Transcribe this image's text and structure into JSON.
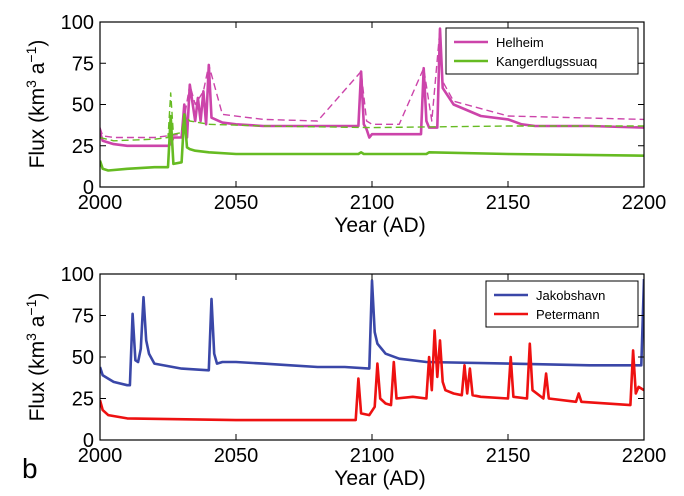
{
  "chart_data": [
    {
      "type": "line",
      "panel_label": "",
      "xlabel": "Year (AD)",
      "ylabel_parts": [
        "Flux (km",
        "3",
        " a",
        "−1",
        ")"
      ],
      "xlim": [
        2000,
        2200
      ],
      "ylim": [
        0,
        100
      ],
      "xticks": [
        2000,
        2050,
        2100,
        2150,
        2200
      ],
      "yticks": [
        0,
        25,
        50,
        75,
        100
      ],
      "legend_position": "top-right",
      "series": [
        {
          "name": "Helheim",
          "color": "#cc44aa",
          "style": "solid",
          "x": [
            2000,
            2001,
            2005,
            2010,
            2020,
            2025,
            2026,
            2027,
            2030,
            2031,
            2032,
            2033,
            2035,
            2036,
            2037,
            2038,
            2039,
            2040,
            2041,
            2045,
            2050,
            2060,
            2070,
            2080,
            2090,
            2095,
            2096,
            2097,
            2098,
            2099,
            2100,
            2105,
            2110,
            2118,
            2119,
            2120,
            2121,
            2122,
            2124,
            2125,
            2126,
            2130,
            2140,
            2150,
            2155,
            2160,
            2180,
            2200
          ],
          "y": [
            33,
            28,
            26,
            25,
            25,
            25,
            26,
            30,
            30,
            50,
            30,
            62,
            40,
            54,
            40,
            58,
            38,
            74,
            42,
            39,
            38,
            37,
            37,
            37,
            37,
            37,
            70,
            38,
            35,
            30,
            32,
            32,
            32,
            32,
            72,
            40,
            36,
            36,
            36,
            96,
            60,
            50,
            43,
            41,
            38,
            37,
            37,
            36
          ]
        },
        {
          "name": "Helheim",
          "color": "#cc44aa",
          "style": "dashed",
          "x": [
            2000,
            2001,
            2005,
            2020,
            2025,
            2030,
            2033,
            2035,
            2038,
            2040,
            2045,
            2060,
            2080,
            2096,
            2098,
            2100,
            2110,
            2119,
            2122,
            2125,
            2126,
            2130,
            2150,
            2200
          ],
          "y": [
            36,
            31,
            30,
            30,
            31,
            32,
            62,
            50,
            58,
            74,
            44,
            41,
            40,
            70,
            40,
            38,
            38,
            72,
            40,
            96,
            64,
            52,
            43,
            41
          ]
        },
        {
          "name": "Kangerdlugssuaq",
          "color": "#66bb22",
          "style": "solid",
          "x": [
            2000,
            2001,
            2003,
            2010,
            2020,
            2025,
            2026,
            2027,
            2030,
            2031,
            2032,
            2033,
            2035,
            2040,
            2050,
            2060,
            2080,
            2090,
            2095,
            2096,
            2097,
            2100,
            2120,
            2121,
            2150,
            2200
          ],
          "y": [
            16,
            11,
            10,
            11,
            12,
            12,
            43,
            14,
            15,
            44,
            24,
            23,
            22,
            21,
            20,
            20,
            20,
            20,
            20,
            21,
            20,
            20,
            20,
            21,
            20,
            19
          ]
        },
        {
          "name": "Kangerdlugssuaq",
          "color": "#66bb22",
          "style": "dashed",
          "x": [
            2000,
            2005,
            2020,
            2025,
            2026,
            2027,
            2030,
            2031,
            2033,
            2040,
            2060,
            2100,
            2150,
            2200
          ],
          "y": [
            30,
            28,
            29,
            30,
            57,
            32,
            33,
            44,
            40,
            38,
            37,
            36,
            37,
            37
          ]
        }
      ],
      "legend": [
        {
          "label": "Helheim",
          "color": "#cc44aa"
        },
        {
          "label": "Kangerdlugssuaq",
          "color": "#66bb22"
        }
      ]
    },
    {
      "type": "line",
      "panel_label": "b",
      "xlabel": "Year (AD)",
      "ylabel_parts": [
        "Flux (km",
        "3",
        " a",
        "−1",
        ")"
      ],
      "xlim": [
        2000,
        2200
      ],
      "ylim": [
        0,
        100
      ],
      "xticks": [
        2000,
        2050,
        2100,
        2150,
        2200
      ],
      "yticks": [
        0,
        25,
        50,
        75,
        100
      ],
      "legend_position": "top-right",
      "series": [
        {
          "name": "Jakobshavn",
          "color": "#3a47a8",
          "style": "solid",
          "x": [
            2000,
            2001,
            2003,
            2005,
            2010,
            2011,
            2012,
            2013,
            2014,
            2015,
            2016,
            2017,
            2018,
            2020,
            2030,
            2040,
            2041,
            2042,
            2043,
            2045,
            2050,
            2060,
            2070,
            2080,
            2090,
            2099,
            2100,
            2101,
            2102,
            2105,
            2110,
            2120,
            2150,
            2180,
            2199,
            2200
          ],
          "y": [
            44,
            39,
            37,
            35,
            33,
            33,
            76,
            48,
            47,
            55,
            86,
            60,
            52,
            46,
            43,
            42,
            85,
            52,
            46,
            47,
            47,
            46,
            45,
            44,
            44,
            43,
            96,
            65,
            58,
            52,
            49,
            47,
            46,
            45,
            45,
            97
          ]
        },
        {
          "name": "Petermann",
          "color": "#ee1111",
          "style": "solid",
          "x": [
            2000,
            2001,
            2003,
            2010,
            2050,
            2094,
            2095,
            2096,
            2099,
            2101,
            2102,
            2103,
            2105,
            2107,
            2108,
            2109,
            2115,
            2120,
            2121,
            2122,
            2123,
            2124,
            2125,
            2126,
            2127,
            2130,
            2133,
            2134,
            2135,
            2136,
            2137,
            2140,
            2150,
            2151,
            2152,
            2157,
            2158,
            2159,
            2163,
            2164,
            2165,
            2175,
            2176,
            2177,
            2195,
            2196,
            2197,
            2198,
            2200
          ],
          "y": [
            24,
            18,
            15,
            13,
            12,
            12,
            37,
            16,
            15,
            20,
            46,
            25,
            22,
            21,
            47,
            25,
            26,
            25,
            50,
            30,
            66,
            38,
            60,
            35,
            30,
            28,
            27,
            45,
            28,
            43,
            27,
            26,
            25,
            50,
            26,
            25,
            58,
            30,
            25,
            40,
            25,
            23,
            28,
            23,
            21,
            54,
            28,
            32,
            30
          ]
        }
      ],
      "legend": [
        {
          "label": "Jakobshavn",
          "color": "#3a47a8"
        },
        {
          "label": "Petermann",
          "color": "#ee1111"
        }
      ]
    }
  ]
}
